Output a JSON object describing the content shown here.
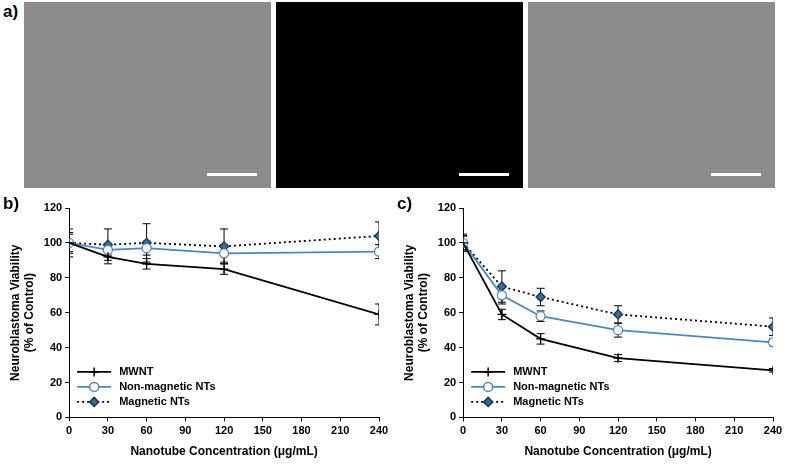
{
  "panel_a": {
    "panel_label": "a)"
  },
  "chart_data": [
    {
      "type": "line",
      "panel_label": "b)",
      "x_label": "Nanotube Concentration (μg/mL)",
      "y_label": [
        "Neuroblastoma Viability",
        "(% of Control)"
      ],
      "x": [
        0,
        30,
        60,
        120,
        240
      ],
      "xlim": [
        0,
        240
      ],
      "xticks": [
        0,
        30,
        60,
        90,
        120,
        150,
        180,
        210,
        240
      ],
      "ylim": [
        0,
        120
      ],
      "yticks": [
        0,
        20,
        40,
        60,
        80,
        100,
        120
      ],
      "grid": false,
      "legend": "lower left",
      "series": [
        {
          "name": "MWNT",
          "color": "#000000",
          "marker": "plus",
          "line_style": "solid",
          "values": [
            100,
            92,
            88,
            85,
            59
          ],
          "errors": [
            8,
            4,
            3,
            3,
            6
          ]
        },
        {
          "name": "Non-magnetic NTs",
          "color": "#4a86c5",
          "marker": "circle",
          "line_style": "solid",
          "values": [
            100,
            96,
            97,
            94,
            95
          ],
          "errors": [
            5,
            3,
            4,
            5,
            4
          ]
        },
        {
          "name": "Magnetic NTs",
          "color": "#000000",
          "marker": "diamond",
          "line_style": "dotted",
          "values": [
            100,
            99,
            100,
            98,
            104
          ],
          "errors": [
            6,
            9,
            11,
            10,
            8
          ]
        }
      ]
    },
    {
      "type": "line",
      "panel_label": "c)",
      "x_label": "Nanotube Concentration (μg/mL)",
      "y_label": [
        "Neuroblastoma Viability",
        "(% of Control)"
      ],
      "x": [
        0,
        30,
        60,
        120,
        240
      ],
      "xlim": [
        0,
        240
      ],
      "xticks": [
        0,
        30,
        60,
        90,
        120,
        150,
        180,
        210,
        240
      ],
      "ylim": [
        0,
        120
      ],
      "yticks": [
        0,
        20,
        40,
        60,
        80,
        100,
        120
      ],
      "grid": false,
      "legend": "lower left",
      "series": [
        {
          "name": "MWNT",
          "color": "#000000",
          "marker": "plus",
          "line_style": "solid",
          "values": [
            100,
            59,
            45,
            34,
            27
          ],
          "errors": [
            5,
            3,
            3,
            2,
            1
          ]
        },
        {
          "name": "Non-magnetic NTs",
          "color": "#4a86c5",
          "marker": "circle",
          "line_style": "solid",
          "values": [
            100,
            70,
            58,
            50,
            43
          ],
          "errors": [
            4,
            5,
            3,
            4,
            2
          ]
        },
        {
          "name": "Magnetic NTs",
          "color": "#000000",
          "marker": "diamond",
          "line_style": "dotted",
          "values": [
            100,
            75,
            69,
            59,
            52
          ],
          "errors": [
            4,
            9,
            5,
            5,
            5
          ]
        }
      ]
    }
  ]
}
